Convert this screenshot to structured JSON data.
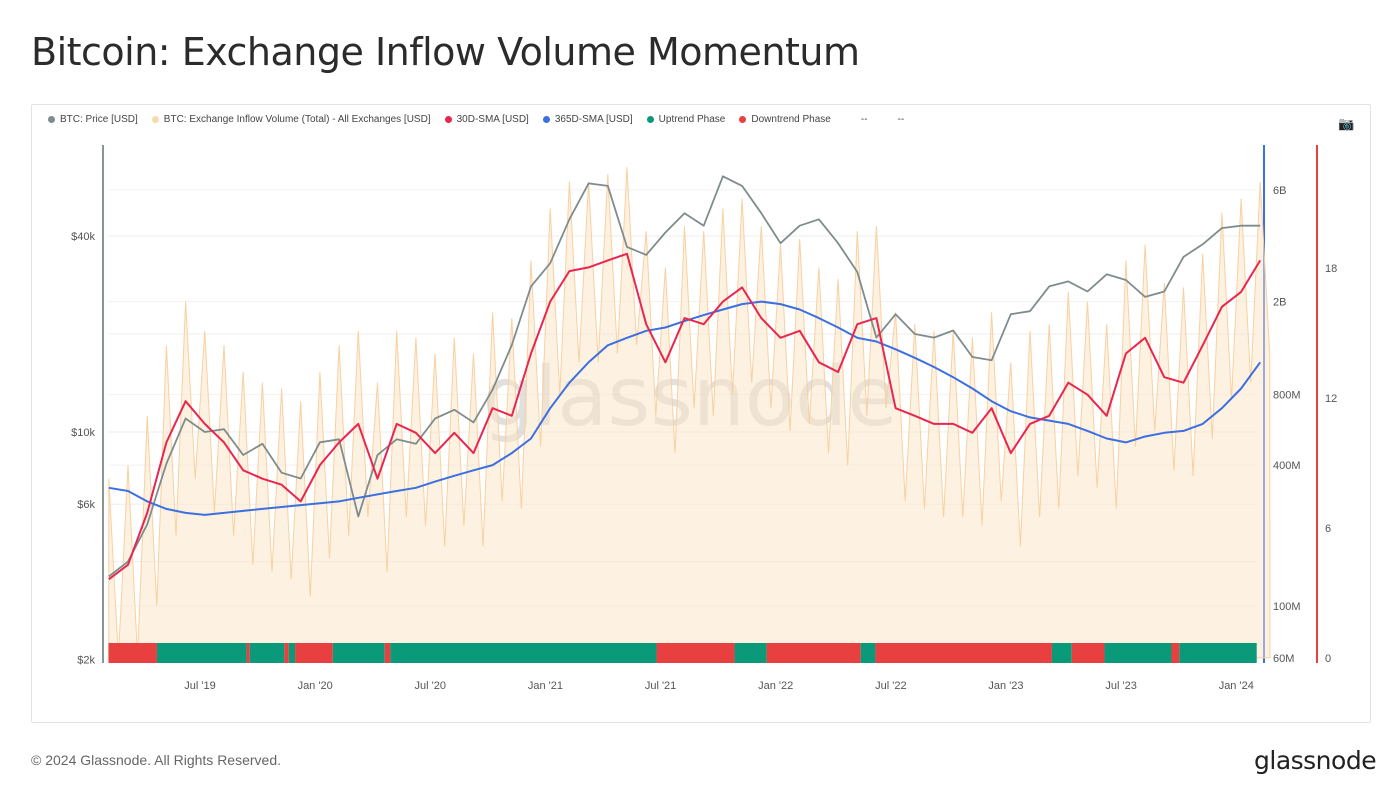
{
  "title": "Bitcoin: Exchange Inflow Volume Momentum",
  "footer": "© 2024 Glassnode. All Rights Reserved.",
  "logo": "glassnode",
  "watermark": "glassnode",
  "legend": [
    {
      "label": "BTC: Price [USD]",
      "color": "#7f8c8d"
    },
    {
      "label": "BTC: Exchange Inflow Volume (Total) - All Exchanges [USD]",
      "color": "#f9d9b0"
    },
    {
      "label": "30D-SMA [USD]",
      "color": "#e8264f"
    },
    {
      "label": "365D-SMA [USD]",
      "color": "#3c6fe0"
    },
    {
      "label": "Uptrend Phase",
      "color": "#0a9a7a"
    },
    {
      "label": "Downtrend Phase",
      "color": "#e84040"
    },
    {
      "label": "--",
      "color": ""
    },
    {
      "label": "--",
      "color": ""
    }
  ],
  "chart_data": {
    "type": "line",
    "title": "Bitcoin: Exchange Inflow Volume Momentum",
    "grid": true,
    "legend_position": "top-left",
    "x_start": "2019-02",
    "x_frequency": "monthly",
    "x_range": [
      "2019-02-08",
      "2024-02-03"
    ],
    "x_ticks": [
      "Jul '19",
      "Jan '20",
      "Jul '20",
      "Jan '21",
      "Jul '21",
      "Jan '22",
      "Jul '22",
      "Jan '23",
      "Jul '23",
      "Jan '24"
    ],
    "y_left": {
      "scale": "log",
      "ticks": [
        "$2k",
        "$6k",
        "$10k",
        "$40k"
      ],
      "range": [
        2000,
        70000
      ]
    },
    "y_right_volume": {
      "scale": "log",
      "ticks": [
        "60M",
        "100M",
        "400M",
        "800M",
        "2B",
        "6B"
      ],
      "range": [
        60000000,
        9000000000
      ],
      "color": "#3c6fe0"
    },
    "y_right_phase": {
      "scale": "linear",
      "ticks": [
        "0",
        "6",
        "12",
        "18"
      ],
      "range": [
        0,
        24
      ],
      "color": "#e84040"
    },
    "series": [
      {
        "name": "BTC: Price [USD]",
        "color": "#7f8c8d",
        "values": [
          3600,
          4000,
          5200,
          8000,
          11000,
          10000,
          10200,
          8500,
          9200,
          7500,
          7200,
          9300,
          9500,
          5500,
          8500,
          9500,
          9200,
          11000,
          11700,
          10700,
          13500,
          18500,
          28000,
          33000,
          45000,
          58000,
          57000,
          37000,
          35000,
          41000,
          47000,
          43000,
          61000,
          57000,
          47000,
          38000,
          43000,
          45000,
          38000,
          31000,
          19500,
          23000,
          20000,
          19500,
          20500,
          17000,
          16600,
          23000,
          23500,
          28000,
          29000,
          27000,
          30500,
          29300,
          26000,
          27000,
          34500,
          37700,
          42300,
          43000,
          43000
        ]
      },
      {
        "name": "30D-SMA [USD]",
        "color": "#e8264f",
        "values": [
          130000000.0,
          150000000.0,
          250000000.0,
          500000000.0,
          750000000.0,
          600000000.0,
          500000000.0,
          380000000.0,
          350000000.0,
          330000000.0,
          280000000.0,
          400000000.0,
          500000000.0,
          600000000.0,
          350000000.0,
          600000000.0,
          550000000.0,
          450000000.0,
          550000000.0,
          450000000.0,
          700000000.0,
          650000000.0,
          1200000000.0,
          2000000000.0,
          2700000000.0,
          2800000000.0,
          3000000000.0,
          3200000000.0,
          1600000000.0,
          1100000000.0,
          1700000000.0,
          1600000000.0,
          2000000000.0,
          2300000000.0,
          1700000000.0,
          1400000000.0,
          1500000000.0,
          1100000000.0,
          1000000000.0,
          1600000000.0,
          1700000000.0,
          700000000.0,
          650000000.0,
          600000000.0,
          600000000.0,
          550000000.0,
          700000000.0,
          450000000.0,
          600000000.0,
          650000000.0,
          900000000.0,
          800000000.0,
          650000000.0,
          1200000000.0,
          1400000000.0,
          950000000.0,
          900000000.0,
          1300000000.0,
          1900000000.0,
          2200000000.0,
          3000000000.0
        ]
      },
      {
        "name": "365D-SMA [USD]",
        "color": "#3c6fe0",
        "values": [
          320000000.0,
          310000000.0,
          280000000.0,
          260000000.0,
          250000000.0,
          245000000.0,
          250000000.0,
          255000000.0,
          260000000.0,
          265000000.0,
          270000000.0,
          275000000.0,
          280000000.0,
          290000000.0,
          300000000.0,
          310000000.0,
          320000000.0,
          340000000.0,
          360000000.0,
          380000000.0,
          400000000.0,
          450000000.0,
          520000000.0,
          700000000.0,
          900000000.0,
          1100000000.0,
          1300000000.0,
          1400000000.0,
          1500000000.0,
          1550000000.0,
          1650000000.0,
          1750000000.0,
          1850000000.0,
          1950000000.0,
          2000000000.0,
          1950000000.0,
          1850000000.0,
          1700000000.0,
          1550000000.0,
          1400000000.0,
          1350000000.0,
          1250000000.0,
          1150000000.0,
          1050000000.0,
          950000000.0,
          850000000.0,
          750000000.0,
          680000000.0,
          640000000.0,
          620000000.0,
          600000000.0,
          560000000.0,
          520000000.0,
          500000000.0,
          530000000.0,
          550000000.0,
          560000000.0,
          600000000.0,
          700000000.0,
          850000000.0,
          1100000000.0
        ]
      },
      {
        "name": "BTC: Exchange Inflow Volume (Total) - All Exchanges [USD]",
        "color": "#f9d9b0",
        "high": [
          350000000.0,
          400000000.0,
          650000000.0,
          1300000000.0,
          2000000000.0,
          1500000000.0,
          1300000000.0,
          1000000000.0,
          900000000.0,
          850000000.0,
          750000000.0,
          1000000000.0,
          1300000000.0,
          1500000000.0,
          900000000.0,
          1500000000.0,
          1400000000.0,
          1200000000.0,
          1400000000.0,
          1200000000.0,
          1800000000.0,
          1700000000.0,
          3000000000.0,
          5000000000.0,
          6500000000.0,
          6500000000.0,
          7000000000.0,
          7500000000.0,
          4000000000.0,
          2800000000.0,
          4200000000.0,
          4000000000.0,
          5000000000.0,
          5500000000.0,
          4200000000.0,
          3500000000.0,
          3700000000.0,
          2800000000.0,
          2500000000.0,
          4000000000.0,
          4200000000.0,
          1800000000.0,
          1600000000.0,
          1500000000.0,
          1500000000.0,
          1400000000.0,
          1800000000.0,
          1100000000.0,
          1500000000.0,
          1600000000.0,
          2200000000.0,
          2000000000.0,
          1600000000.0,
          3000000000.0,
          3500000000.0,
          2400000000.0,
          2300000000.0,
          3200000000.0,
          4800000000.0,
          5500000000.0,
          6500000000.0
        ],
        "low": [
          60000000.0,
          60000000.0,
          100000000.0,
          200000000.0,
          350000000.0,
          250000000.0,
          200000000.0,
          150000000.0,
          140000000.0,
          130000000.0,
          110000000.0,
          160000000.0,
          200000000.0,
          240000000.0,
          140000000.0,
          240000000.0,
          220000000.0,
          180000000.0,
          220000000.0,
          180000000.0,
          280000000.0,
          260000000.0,
          480000000.0,
          800000000.0,
          1100000000.0,
          1100000000.0,
          1200000000.0,
          1300000000.0,
          650000000.0,
          450000000.0,
          700000000.0,
          650000000.0,
          800000000.0,
          900000000.0,
          700000000.0,
          560000000.0,
          600000000.0,
          450000000.0,
          400000000.0,
          650000000.0,
          700000000.0,
          280000000.0,
          260000000.0,
          240000000.0,
          240000000.0,
          220000000.0,
          280000000.0,
          180000000.0,
          240000000.0,
          260000000.0,
          360000000.0,
          320000000.0,
          260000000.0,
          480000000.0,
          560000000.0,
          380000000.0,
          360000000.0,
          520000000.0,
          760000000.0,
          900000000.0,
          1200000000.0
        ]
      }
    ],
    "phases": [
      {
        "start": "2019-02-08",
        "end": "2019-04-24",
        "phase": "Downtrend"
      },
      {
        "start": "2019-04-24",
        "end": "2019-09-14",
        "phase": "Uptrend"
      },
      {
        "start": "2019-09-14",
        "end": "2019-09-19",
        "phase": "Downtrend"
      },
      {
        "start": "2019-09-19",
        "end": "2019-11-13",
        "phase": "Uptrend"
      },
      {
        "start": "2019-11-13",
        "end": "2019-11-20",
        "phase": "Downtrend"
      },
      {
        "start": "2019-11-20",
        "end": "2019-11-30",
        "phase": "Uptrend"
      },
      {
        "start": "2019-11-30",
        "end": "2020-01-29",
        "phase": "Downtrend"
      },
      {
        "start": "2020-01-29",
        "end": "2020-04-20",
        "phase": "Uptrend"
      },
      {
        "start": "2020-04-20",
        "end": "2020-04-29",
        "phase": "Downtrend"
      },
      {
        "start": "2020-04-29",
        "end": "2021-06-25",
        "phase": "Uptrend"
      },
      {
        "start": "2021-06-25",
        "end": "2021-10-27",
        "phase": "Downtrend"
      },
      {
        "start": "2021-10-27",
        "end": "2021-12-17",
        "phase": "Uptrend"
      },
      {
        "start": "2021-12-17",
        "end": "2022-05-14",
        "phase": "Downtrend"
      },
      {
        "start": "2022-05-14",
        "end": "2022-06-07",
        "phase": "Uptrend"
      },
      {
        "start": "2022-06-07",
        "end": "2023-03-13",
        "phase": "Downtrend"
      },
      {
        "start": "2023-03-13",
        "end": "2023-04-14",
        "phase": "Uptrend"
      },
      {
        "start": "2023-04-14",
        "end": "2023-06-05",
        "phase": "Downtrend"
      },
      {
        "start": "2023-06-05",
        "end": "2023-09-20",
        "phase": "Uptrend"
      },
      {
        "start": "2023-09-20",
        "end": "2023-10-02",
        "phase": "Downtrend"
      },
      {
        "start": "2023-10-02",
        "end": "2024-02-03",
        "phase": "Uptrend"
      }
    ]
  }
}
